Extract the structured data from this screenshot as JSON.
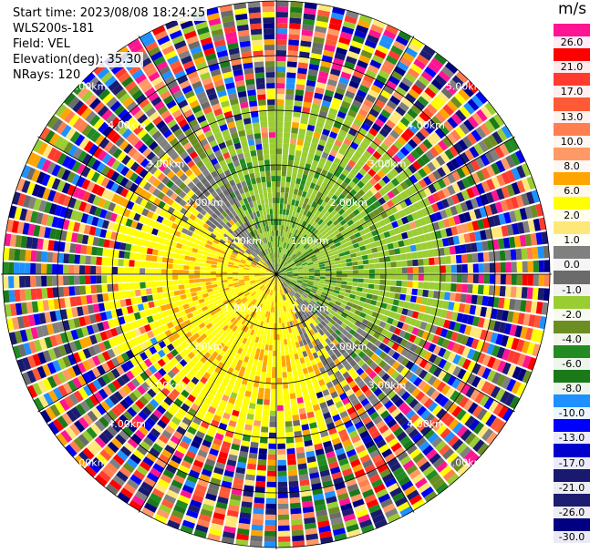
{
  "info": {
    "start_time": "Start time: 2023/08/08 18:24:25",
    "instrument": "WLS200s-181",
    "field": "Field: VEL",
    "elevation": "Elevation(deg): 35.30",
    "nrays": "NRays: 120"
  },
  "range_rings": [
    {
      "label": "1.00km"
    },
    {
      "label": "2.00km"
    },
    {
      "label": "3.00km"
    },
    {
      "label": "4.00km"
    },
    {
      "label": "5.00km"
    }
  ],
  "colorbar": {
    "unit": "m/s",
    "ticks": [
      "26.0",
      "21.0",
      "17.0",
      "13.0",
      "10.0",
      "8.0",
      "6.0",
      "2.0",
      "1.0",
      "0.0",
      "-1.0",
      "-2.0",
      "-4.0",
      "-6.0",
      "-8.0",
      "-10.0",
      "-13.0",
      "-17.0",
      "-21.0",
      "-26.0",
      "-30.0"
    ],
    "colors": [
      "#ff1493",
      "#ff0000",
      "#ff3b30",
      "#ff5a36",
      "#ff7f50",
      "#ff9a66",
      "#ffa500",
      "#ffff00",
      "#ffe87a",
      "#808080",
      "#6b6b6b",
      "#9acd32",
      "#6b8e23",
      "#228b22",
      "#1a7a1a",
      "#1e90ff",
      "#0000ff",
      "#0000cd",
      "#191970",
      "#1c1c70",
      "#000080"
    ]
  }
}
